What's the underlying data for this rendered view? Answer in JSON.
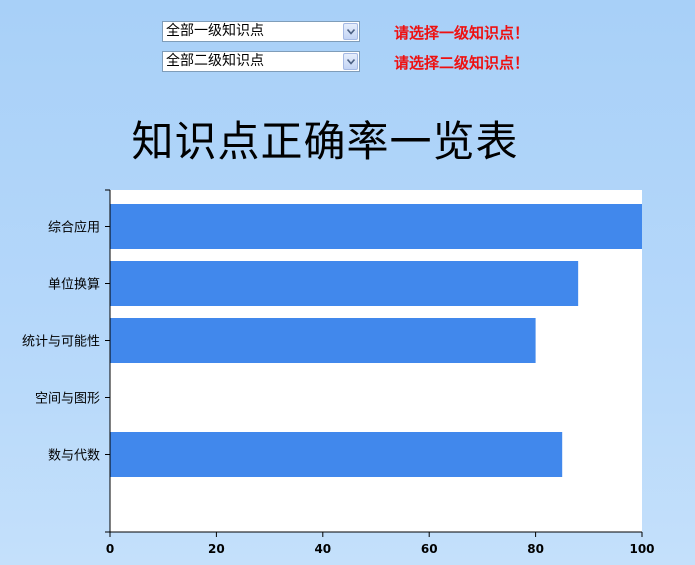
{
  "filters": {
    "level1": {
      "selected": "全部一级知识点",
      "warning": "请选择一级知识点！"
    },
    "level2": {
      "selected": "全部二级知识点",
      "warning": "请选择二级知识点！"
    }
  },
  "colors": {
    "bar": "#4188ec",
    "warning": "#ee1111"
  },
  "chart_data": {
    "type": "bar",
    "orientation": "horizontal",
    "title": "知识点正确率一览表",
    "xlabel": "",
    "ylabel": "",
    "xlim": [
      0,
      100
    ],
    "xticks": [
      0,
      20,
      40,
      60,
      80,
      100
    ],
    "categories": [
      "综合应用",
      "单位换算",
      "统计与可能性",
      "空间与图形",
      "数与代数"
    ],
    "values": [
      100,
      88,
      80,
      0,
      85
    ],
    "grid": false,
    "legend": "none"
  }
}
